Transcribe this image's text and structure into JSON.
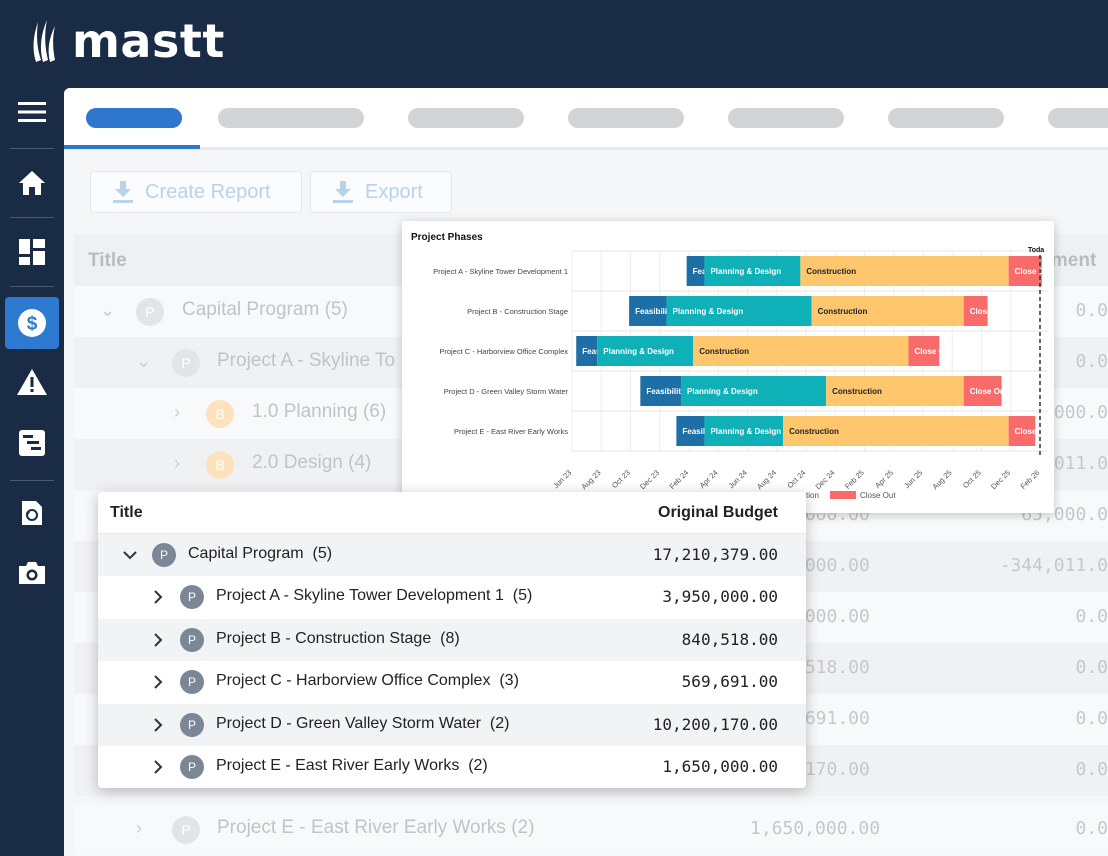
{
  "app": {
    "logo_text": "mastt"
  },
  "sidebar": {
    "items": [
      {
        "name": "menu-icon"
      },
      {
        "name": "home-icon"
      },
      {
        "name": "dashboard-icon"
      },
      {
        "name": "dollar-icon",
        "active": true
      },
      {
        "name": "warning-icon"
      },
      {
        "name": "schedule-icon"
      },
      {
        "name": "history-icon"
      },
      {
        "name": "camera-icon"
      }
    ]
  },
  "toolbar": {
    "create_report": "Create Report",
    "export": "Export"
  },
  "background_table": {
    "title_header": "Title",
    "right_header": "stment",
    "rows": [
      {
        "label": "Capital Program",
        "count": "(5)",
        "badge": "P",
        "num": "",
        "num2": "0.0"
      },
      {
        "label": "Project A - Skyline To",
        "count": "",
        "badge": "P",
        "num": "",
        "num2": "0.0"
      },
      {
        "label": "1.0 Planning",
        "count": "(6)",
        "badge": "B",
        "num": "",
        "num2": "000.0"
      },
      {
        "label": "2.0 Design",
        "count": "(4)",
        "badge": "B",
        "num": "",
        "num2": "011.0"
      },
      {
        "label": "",
        "count": "",
        "badge": "",
        "num": ",000.00",
        "num2": "65,000.0"
      },
      {
        "label": "",
        "count": "",
        "badge": "",
        "num": ",000.00",
        "num2": "-344,011.0"
      },
      {
        "label": "",
        "count": "",
        "badge": "",
        "num": ",000.00",
        "num2": "0.0"
      },
      {
        "label": "",
        "count": "",
        "badge": "",
        "num": ",518.00",
        "num2": "0.0"
      },
      {
        "label": "",
        "count": "",
        "badge": "",
        "num": ",691.00",
        "num2": "0.0"
      },
      {
        "label": "",
        "count": "",
        "badge": "",
        "num": ",170.00",
        "num2": "0.0"
      },
      {
        "label": "Project E - East River Early Works",
        "count": "(2)",
        "badge": "P",
        "num": "1,650,000.00",
        "num2": "0.0"
      }
    ]
  },
  "chart_data": {
    "type": "bar",
    "title": "Project Phases",
    "today_label": "Toda",
    "x_ticks": [
      "Jun 23",
      "Aug 23",
      "Oct 23",
      "Dec 23",
      "Feb 24",
      "Apr 24",
      "Jun 24",
      "Aug 24",
      "Oct 24",
      "Dec 24",
      "Feb 25",
      "Apr 25",
      "Jun 25",
      "Aug 25",
      "Oct 25",
      "Dec 25",
      "Feb 26"
    ],
    "projects": [
      "Project A - Skyline Tower Development 1",
      "Project B - Construction Stage",
      "Project C - Harborview Office Complex",
      "Project D - Green Valley Storm Water",
      "Project E - East River Early Works"
    ],
    "phase_colors": {
      "Feasibility": "#1d6fa5",
      "Planning & Design": "#0fb0b8",
      "Construction": "#fec76e",
      "Close Out": "#f86b6b"
    },
    "bars": [
      [
        {
          "phase": "Feasibility",
          "start": "2024-02-01",
          "end": "2024-03-10",
          "label": "Feasibility"
        },
        {
          "phase": "Planning & Design",
          "start": "2024-03-10",
          "end": "2024-10-01",
          "label": "Planning & Design"
        },
        {
          "phase": "Construction",
          "start": "2024-10-01",
          "end": "2025-12-20",
          "label": "Construction"
        },
        {
          "phase": "Close Out",
          "start": "2025-12-20",
          "end": "2026-03-01",
          "label": "Close Out"
        }
      ],
      [
        {
          "phase": "Feasibility",
          "start": "2023-10-01",
          "end": "2023-12-20",
          "label": "Feasibility"
        },
        {
          "phase": "Planning & Design",
          "start": "2023-12-20",
          "end": "2024-10-25",
          "label": "Planning & Design"
        },
        {
          "phase": "Construction",
          "start": "2024-10-25",
          "end": "2025-09-15",
          "label": "Construction"
        },
        {
          "phase": "Close Out",
          "start": "2025-09-15",
          "end": "2025-11-05",
          "label": "Close Out"
        }
      ],
      [
        {
          "phase": "Feasibility",
          "start": "2023-06-10",
          "end": "2023-07-25",
          "label": "Feasibility"
        },
        {
          "phase": "Planning & Design",
          "start": "2023-07-25",
          "end": "2024-02-15",
          "label": "Planning & Design"
        },
        {
          "phase": "Construction",
          "start": "2024-02-15",
          "end": "2025-05-20",
          "label": "Construction"
        },
        {
          "phase": "Close Out",
          "start": "2025-05-20",
          "end": "2025-07-25",
          "label": "Close Out"
        }
      ],
      [
        {
          "phase": "Feasibility",
          "start": "2023-10-25",
          "end": "2024-01-20",
          "label": "Feasibility"
        },
        {
          "phase": "Planning & Design",
          "start": "2024-01-20",
          "end": "2024-11-25",
          "label": "Planning & Design"
        },
        {
          "phase": "Construction",
          "start": "2024-11-25",
          "end": "2025-09-15",
          "label": "Construction"
        },
        {
          "phase": "Close Out",
          "start": "2025-09-15",
          "end": "2025-12-05",
          "label": "Close Out"
        }
      ],
      [
        {
          "phase": "Feasibility",
          "start": "2024-01-10",
          "end": "2024-03-10",
          "label": "Feasibility"
        },
        {
          "phase": "Planning & Design",
          "start": "2024-03-10",
          "end": "2024-08-25",
          "label": "Planning & Design"
        },
        {
          "phase": "Construction",
          "start": "2024-08-25",
          "end": "2025-12-20",
          "label": "Construction"
        },
        {
          "phase": "Close Out",
          "start": "2025-12-20",
          "end": "2026-02-15",
          "label": "Close Out"
        }
      ]
    ],
    "legend": [
      "ction",
      "Close Out"
    ]
  },
  "popup": {
    "title_header": "Title",
    "budget_header": "Original Budget",
    "rows": [
      {
        "label": "Capital Program",
        "count": "(5)",
        "badge": "P",
        "value": "17,210,379.00",
        "expanded": true
      },
      {
        "label": "Project A - Skyline Tower Development 1",
        "count": "(5)",
        "badge": "P",
        "value": "3,950,000.00"
      },
      {
        "label": "Project B - Construction Stage",
        "count": "(8)",
        "badge": "P",
        "value": "840,518.00"
      },
      {
        "label": "Project C - Harborview Office Complex",
        "count": "(3)",
        "badge": "P",
        "value": "569,691.00"
      },
      {
        "label": "Project D - Green Valley Storm Water",
        "count": "(2)",
        "badge": "P",
        "value": "10,200,170.00"
      },
      {
        "label": "Project E - East River Early Works",
        "count": "(2)",
        "badge": "P",
        "value": "1,650,000.00"
      }
    ]
  }
}
